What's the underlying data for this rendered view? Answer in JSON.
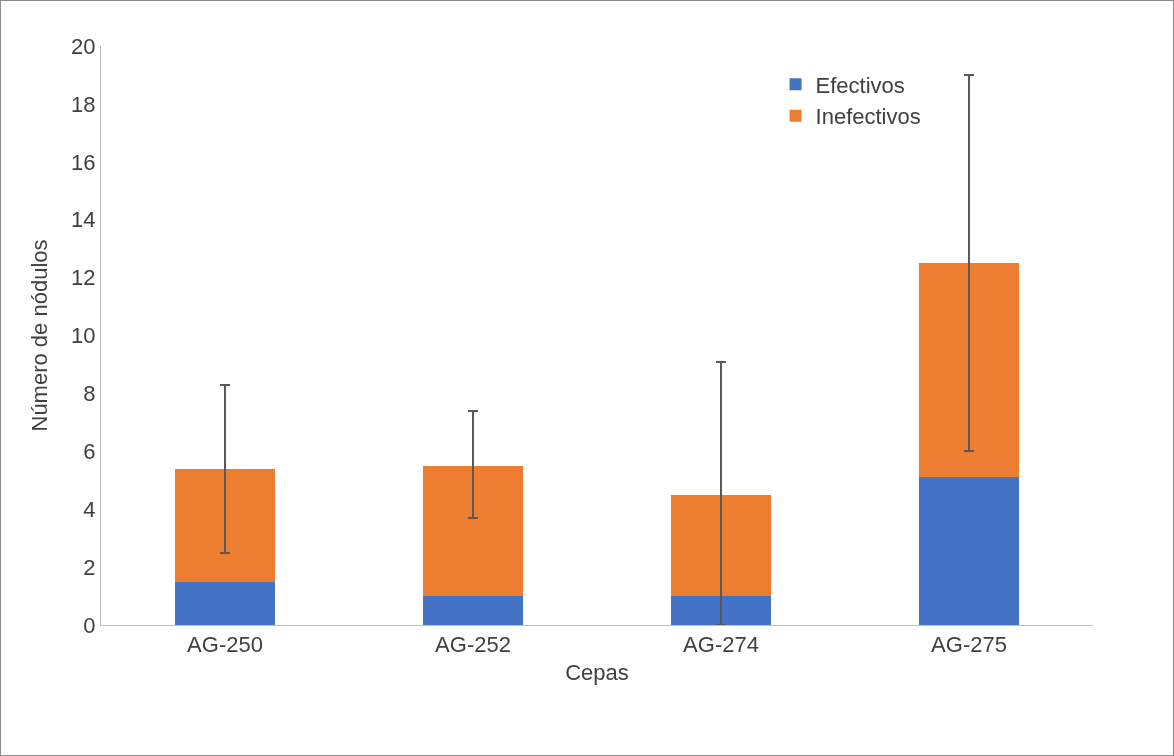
{
  "chart_data": {
    "type": "bar",
    "xlabel": "Cepas",
    "ylabel": "Número de nódulos",
    "categories": [
      "AG-250",
      "AG-252",
      "AG-274",
      "AG-275"
    ],
    "stacked": true,
    "series": [
      {
        "name": "Efectivos",
        "color": "#4472c4",
        "values": [
          1.5,
          1,
          1,
          5.1
        ]
      },
      {
        "name": "Inefectivos",
        "color": "#ed7d31",
        "values": [
          3.9,
          4.5,
          3.5,
          7.4
        ],
        "errors": [
          [
            2.5,
            8.3
          ],
          [
            3.7,
            7.4
          ],
          [
            0,
            9.1
          ],
          [
            6,
            19
          ]
        ]
      }
    ],
    "ylim": [
      0,
      20
    ],
    "yticks": [
      0,
      2,
      4,
      6,
      8,
      10,
      12,
      14,
      16,
      18,
      20
    ],
    "grid": false,
    "legend": "top right"
  }
}
